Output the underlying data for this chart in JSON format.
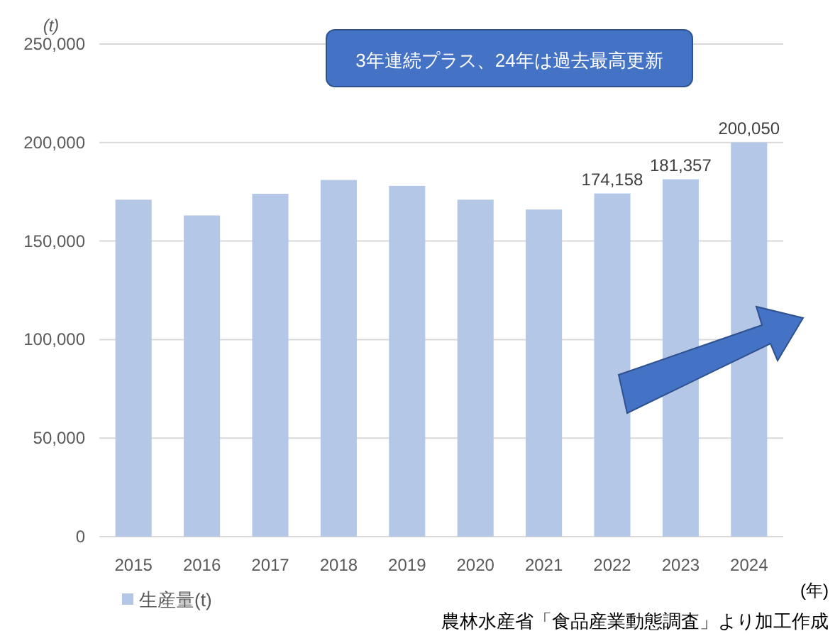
{
  "chart_data": {
    "type": "bar",
    "ylabel": "(t)",
    "xlabel": "(年)",
    "categories": [
      "2015",
      "2016",
      "2017",
      "2018",
      "2019",
      "2020",
      "2021",
      "2022",
      "2023",
      "2024"
    ],
    "series": [
      {
        "name": "生産量(t)",
        "color": "#b4c7e7",
        "values": [
          171000,
          163000,
          174000,
          181000,
          178000,
          171000,
          166000,
          174158,
          181357,
          200050
        ],
        "value_labels": [
          null,
          null,
          null,
          null,
          null,
          null,
          null,
          "174,158",
          "181,357",
          "200,050"
        ]
      }
    ],
    "ylim": [
      0,
      250000
    ],
    "yticks": [
      {
        "value": 0,
        "label": "0"
      },
      {
        "value": 50000,
        "label": "50,000"
      },
      {
        "value": 100000,
        "label": "100,000"
      },
      {
        "value": 150000,
        "label": "150,000"
      },
      {
        "value": 200000,
        "label": "200,000"
      },
      {
        "value": 250000,
        "label": "250,000"
      }
    ],
    "grid": "y",
    "legend": "bottom left",
    "annotations": [
      "3年連続プラス、24年は過去最高更新",
      "農林水産省「食品産業動態調査」より加工作成"
    ]
  }
}
